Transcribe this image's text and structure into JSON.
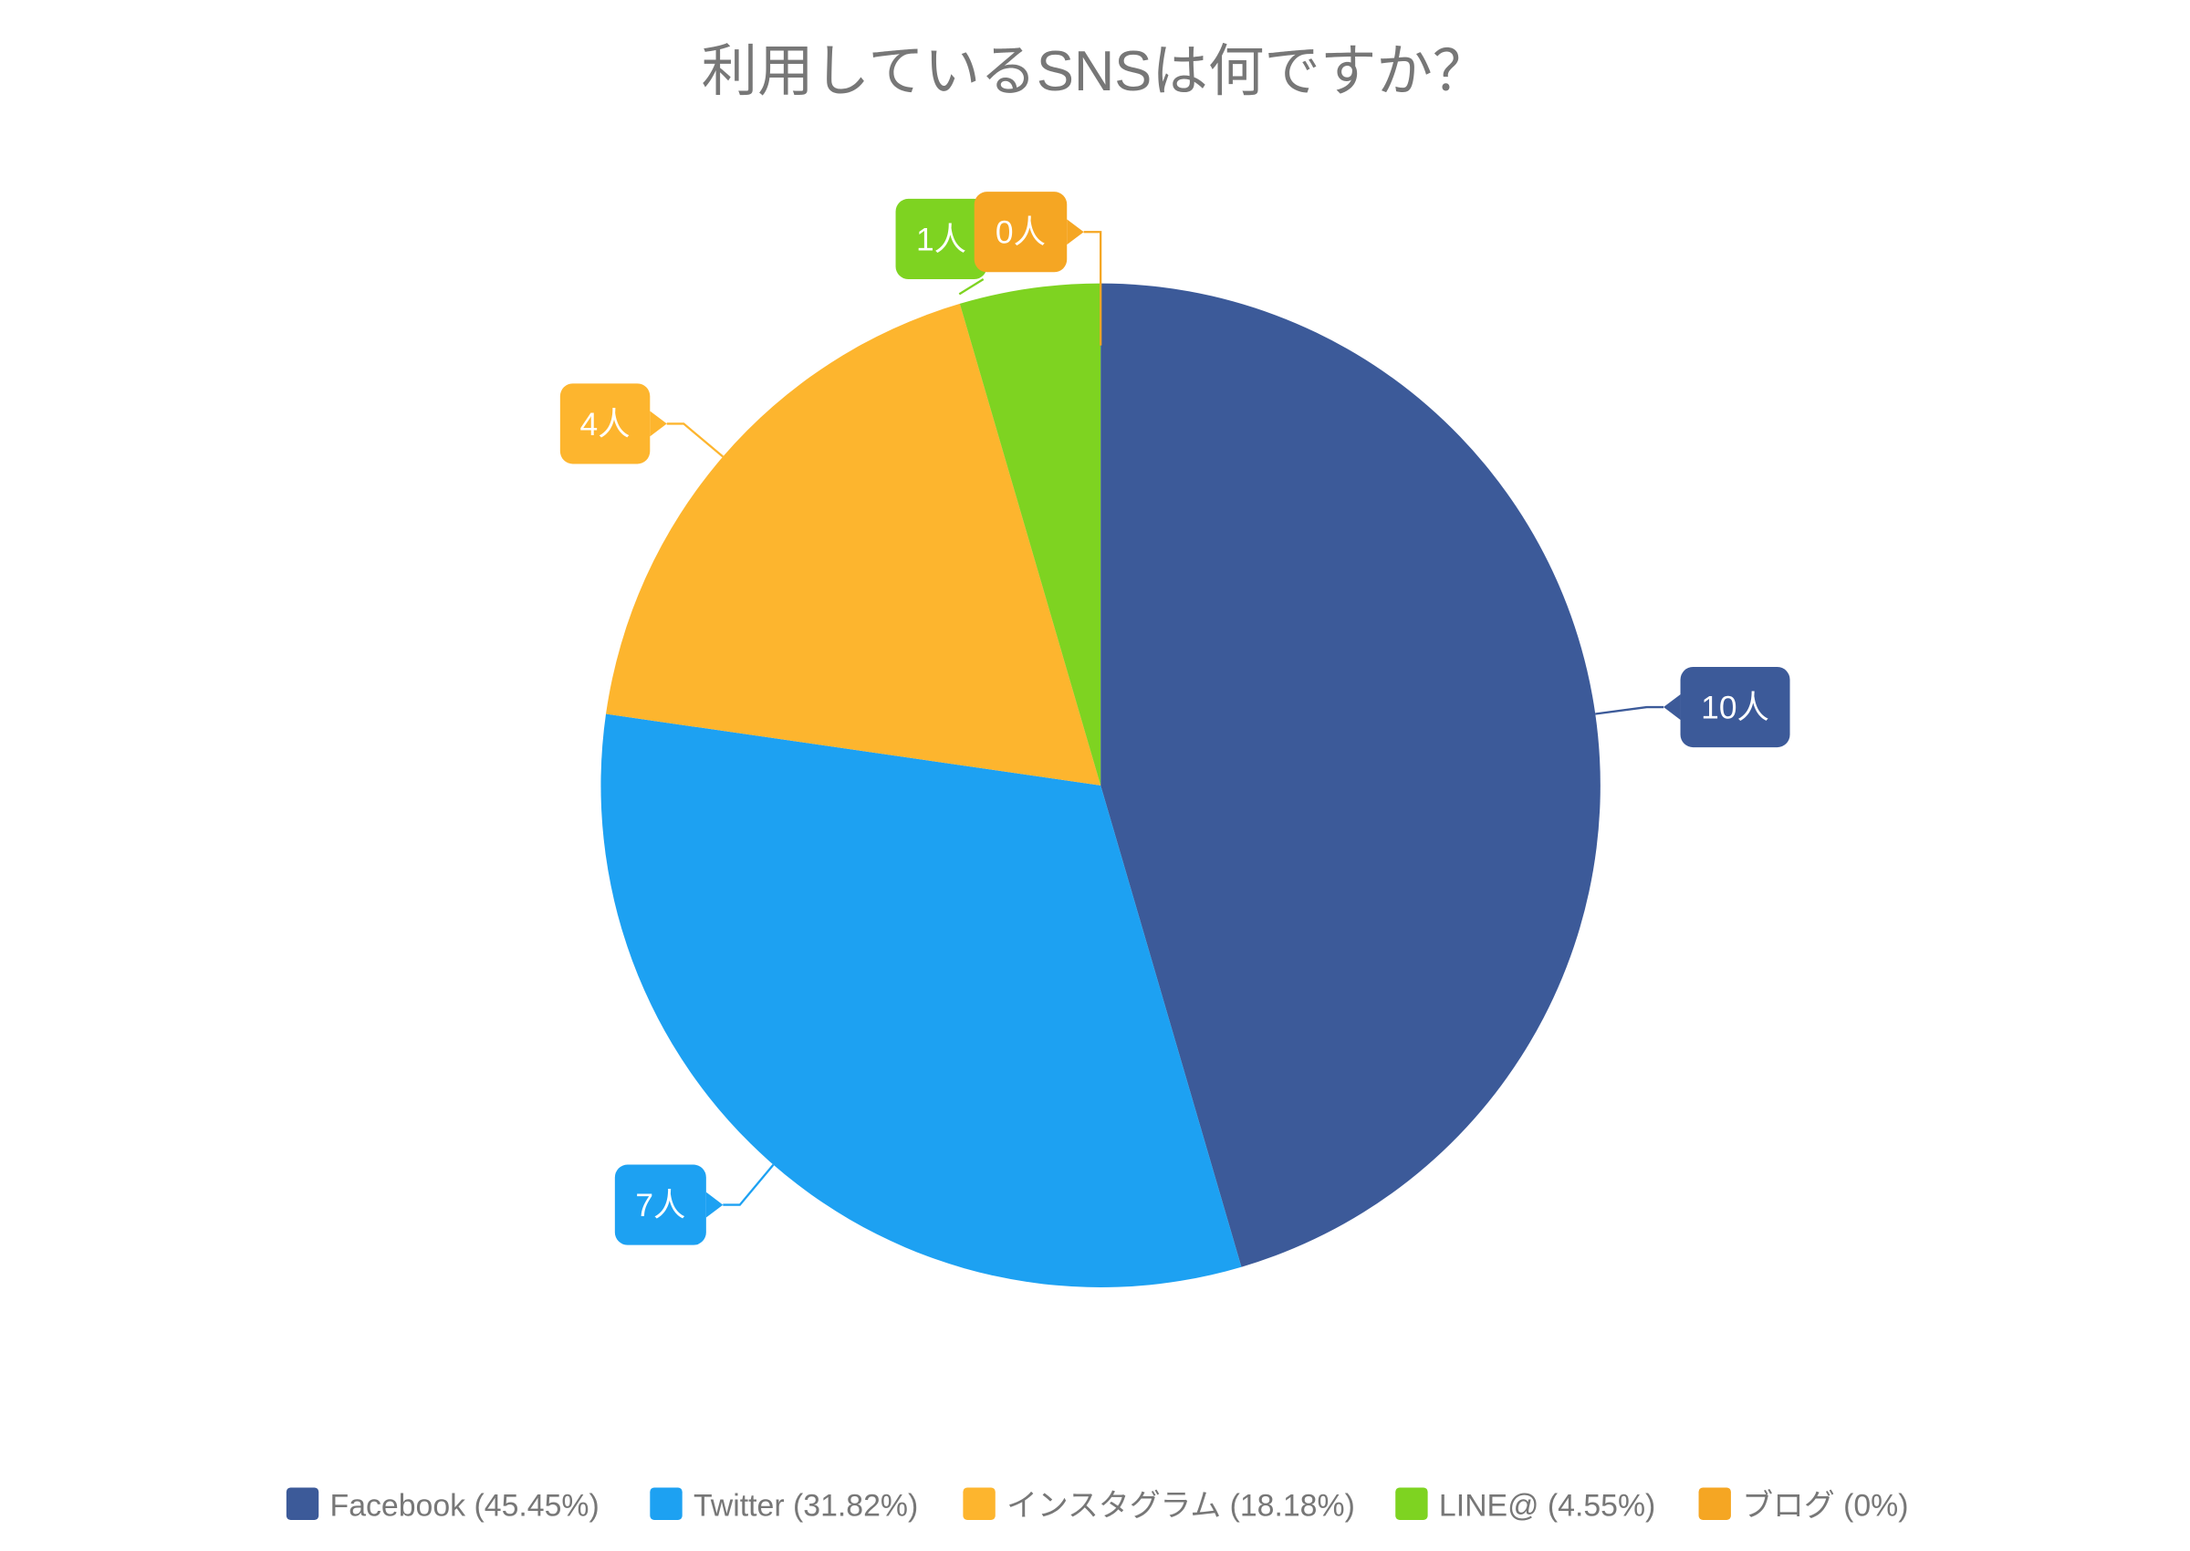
{
  "chart_data": {
    "type": "pie",
    "title": "利用しているSNSは何ですか？",
    "unit_suffix": "人",
    "categories": [
      "Facebook",
      "Twitter",
      "インスタグラム",
      "LINE@",
      "ブログ"
    ],
    "values": [
      10,
      7,
      4,
      1,
      0
    ],
    "percentages": [
      "45.45%",
      "31.82%",
      "18.18%",
      "4.55%",
      "0%"
    ],
    "colors": [
      "#3c5a99",
      "#1da1f2",
      "#fdb52e",
      "#7ed321",
      "#f5a623"
    ],
    "data_labels": [
      "10人",
      "7人",
      "4人",
      "1人",
      "0人"
    ],
    "legend_labels": [
      "Facebook (45.45%)",
      "Twitter (31.82%)",
      "インスタグラム (18.18%)",
      "LINE@ (4.55%)",
      "ブログ (0%)"
    ],
    "legend_position": "bottom",
    "start_angle": "top, clockwise"
  }
}
